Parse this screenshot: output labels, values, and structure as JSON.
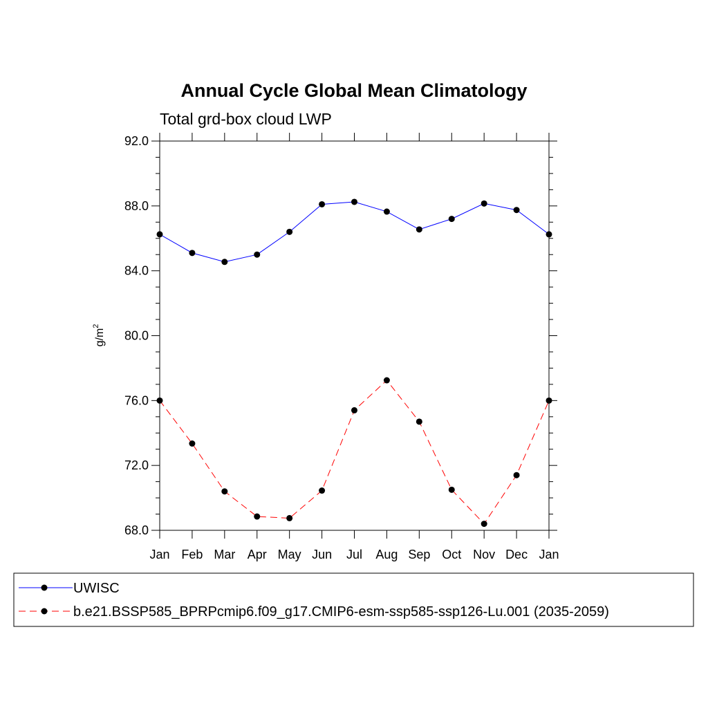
{
  "chart_data": {
    "type": "line",
    "title": "Annual Cycle Global Mean Climatology",
    "subtitle": "Total grd-box cloud LWP",
    "xlabel": "",
    "ylabel": "g/m",
    "ylabel_superscript": "2",
    "ylim": [
      68.0,
      92.0
    ],
    "yticks": [
      "68.0",
      "72.0",
      "76.0",
      "80.0",
      "84.0",
      "88.0",
      "92.0"
    ],
    "categories": [
      "Jan",
      "Feb",
      "Mar",
      "Apr",
      "May",
      "Jun",
      "Jul",
      "Aug",
      "Sep",
      "Oct",
      "Nov",
      "Dec",
      "Jan"
    ],
    "grid": false,
    "legend_position": "bottom",
    "series": [
      {
        "name": "UWISC",
        "color": "#0000ff",
        "style": "solid",
        "values": [
          86.25,
          85.1,
          84.55,
          85.0,
          86.4,
          88.1,
          88.25,
          87.65,
          86.55,
          87.2,
          88.15,
          87.75,
          86.25
        ]
      },
      {
        "name": "b.e21.BSSP585_BPRPcmip6.f09_g17.CMIP6-esm-ssp585-ssp126-Lu.001 (2035-2059)",
        "color": "#ff0000",
        "style": "dashed",
        "values": [
          76.0,
          73.35,
          70.4,
          68.85,
          68.75,
          70.45,
          75.4,
          77.25,
          74.7,
          70.5,
          68.4,
          71.4,
          76.0
        ]
      }
    ]
  }
}
